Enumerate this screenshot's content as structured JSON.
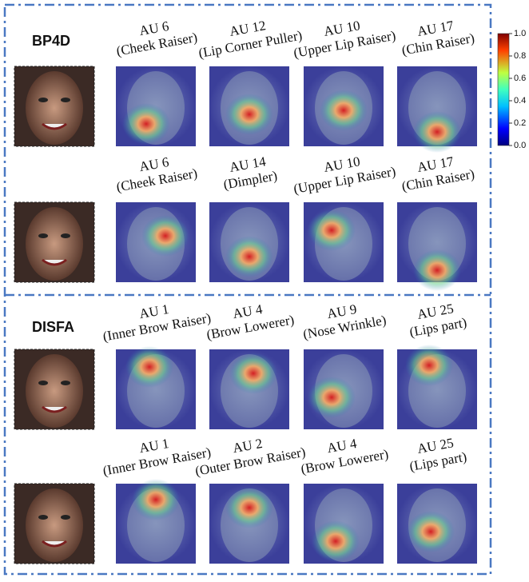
{
  "panels": [
    {
      "title": "BP4D",
      "rows": [
        {
          "aus": [
            {
              "code": "AU 6",
              "name": "(Cheek Raiser)"
            },
            {
              "code": "AU 12",
              "name": "(Lip Corner Puller)"
            },
            {
              "code": "AU 10",
              "name": "(Upper Lip Raiser)"
            },
            {
              "code": "AU 17",
              "name": "(Chin Raiser)"
            }
          ]
        },
        {
          "aus": [
            {
              "code": "AU 6",
              "name": "(Cheek Raiser)"
            },
            {
              "code": "AU 14",
              "name": "(Dimpler)"
            },
            {
              "code": "AU 10",
              "name": "(Upper Lip Raiser)"
            },
            {
              "code": "AU 17",
              "name": "(Chin Raiser)"
            }
          ]
        }
      ]
    },
    {
      "title": "DISFA",
      "rows": [
        {
          "aus": [
            {
              "code": "AU 1",
              "name": "(Inner Brow Raiser)"
            },
            {
              "code": "AU 4",
              "name": "(Brow Lowerer)"
            },
            {
              "code": "AU 9",
              "name": "(Nose Wrinkle)"
            },
            {
              "code": "AU 25",
              "name": "(Lips part)"
            }
          ]
        },
        {
          "aus": [
            {
              "code": "AU 1",
              "name": "(Inner Brow Raiser)"
            },
            {
              "code": "AU 2",
              "name": "(Outer Brow Raiser)"
            },
            {
              "code": "AU 4",
              "name": "(Brow Lowerer)"
            },
            {
              "code": "AU 25",
              "name": "(Lips part)"
            }
          ]
        }
      ]
    }
  ],
  "colorbar": {
    "ylim": [
      0,
      1
    ],
    "ticks": [
      {
        "value": 0,
        "label": "0.0"
      },
      0.2,
      0.4,
      0.6,
      0.8,
      {
        "value": 1,
        "label": "1.0"
      }
    ]
  }
}
